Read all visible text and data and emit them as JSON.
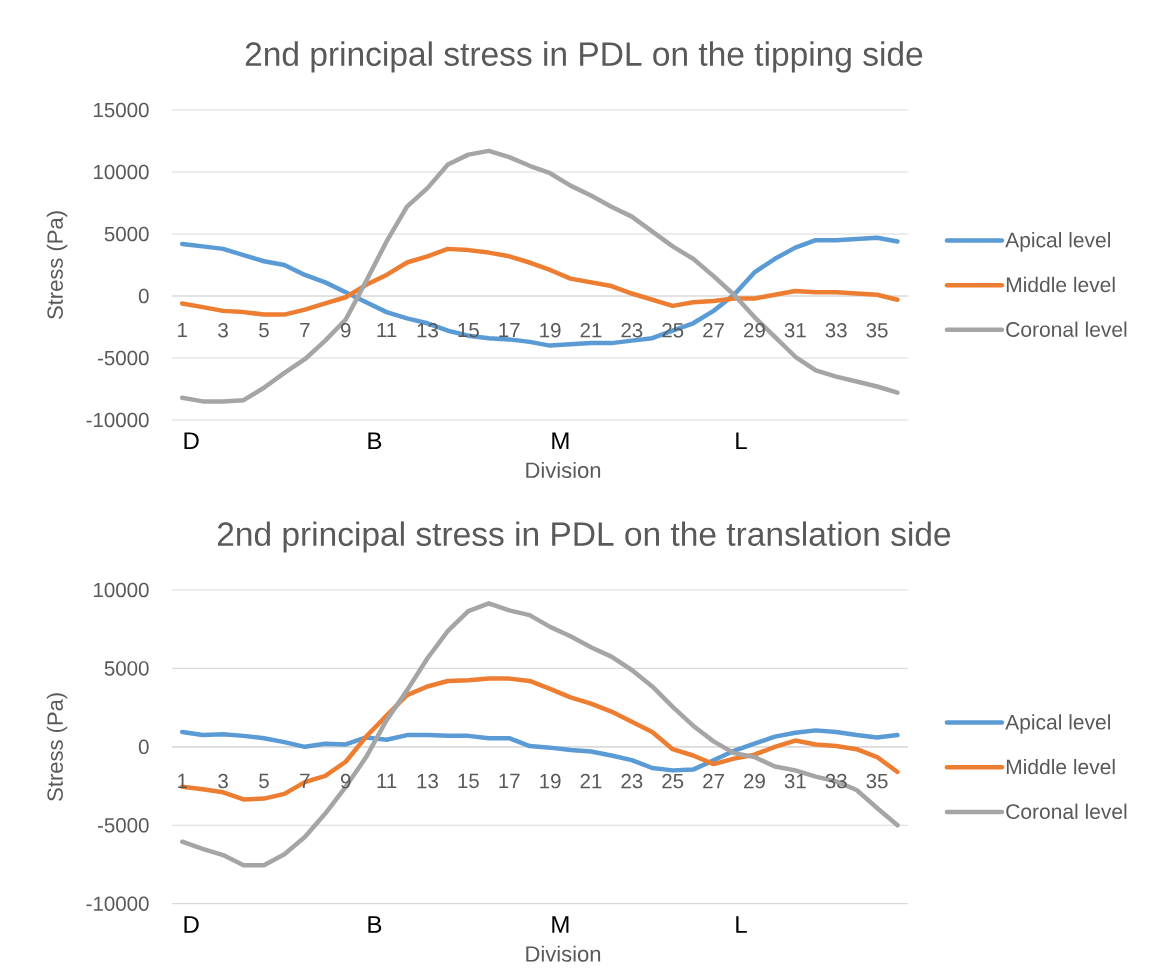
{
  "chart_data": [
    {
      "type": "line",
      "title": "2nd principal stress in PDL on the tipping side",
      "xlabel": "Division",
      "ylabel": "Stress (Pa)",
      "x": [
        1,
        2,
        3,
        4,
        5,
        6,
        7,
        8,
        9,
        10,
        11,
        12,
        13,
        14,
        15,
        16,
        17,
        18,
        19,
        20,
        21,
        22,
        23,
        24,
        25,
        26,
        27,
        28,
        29,
        30,
        31,
        32,
        33,
        34,
        35,
        36
      ],
      "xlim": [
        0.5,
        36.5
      ],
      "xticks": [
        1,
        3,
        5,
        7,
        9,
        11,
        13,
        15,
        17,
        19,
        21,
        23,
        25,
        27,
        29,
        31,
        33,
        35
      ],
      "ylim": [
        -10000,
        15000
      ],
      "yticks": [
        -10000,
        -5000,
        0,
        5000,
        10000,
        15000
      ],
      "grid": "y",
      "legend": "right",
      "series": [
        {
          "name": "Apical level",
          "color": "#5b9bd5",
          "values": [
            4200,
            4000,
            3800,
            3300,
            2800,
            2500,
            1700,
            1100,
            300,
            -500,
            -1300,
            -1800,
            -2200,
            -2800,
            -3200,
            -3400,
            -3500,
            -3700,
            -4000,
            -3900,
            -3800,
            -3800,
            -3600,
            -3400,
            -2800,
            -2200,
            -1200,
            100,
            1900,
            3000,
            3900,
            4500,
            4500,
            4600,
            4700,
            4400
          ]
        },
        {
          "name": "Middle level",
          "color": "#ed7d31",
          "values": [
            -600,
            -900,
            -1200,
            -1300,
            -1500,
            -1500,
            -1100,
            -600,
            -100,
            900,
            1700,
            2700,
            3200,
            3800,
            3700,
            3500,
            3200,
            2700,
            2100,
            1400,
            1100,
            800,
            200,
            -300,
            -800,
            -500,
            -400,
            -200,
            -200,
            100,
            400,
            300,
            300,
            200,
            100,
            -300
          ]
        },
        {
          "name": "Coronal level",
          "color": "#a5a5a5",
          "values": [
            -8200,
            -8500,
            -8500,
            -8400,
            -7400,
            -6200,
            -5100,
            -3600,
            -1900,
            1200,
            4400,
            7200,
            8700,
            10600,
            11400,
            11700,
            11200,
            10500,
            9900,
            8900,
            8100,
            7200,
            6400,
            5200,
            4000,
            3000,
            1600,
            100,
            -1700,
            -3300,
            -4900,
            -6000,
            -6500,
            -6900,
            -7300,
            -7800
          ]
        }
      ],
      "annotations": [
        "D",
        "B",
        "M",
        "L"
      ]
    },
    {
      "type": "line",
      "title": "2nd principal stress in PDL on the translation side",
      "xlabel": "Division",
      "ylabel": "Stress (Pa)",
      "x": [
        1,
        2,
        3,
        4,
        5,
        6,
        7,
        8,
        9,
        10,
        11,
        12,
        13,
        14,
        15,
        16,
        17,
        18,
        19,
        20,
        21,
        22,
        23,
        24,
        25,
        26,
        27,
        28,
        29,
        30,
        31,
        32,
        33,
        34,
        35,
        36
      ],
      "xlim": [
        0.5,
        36.5
      ],
      "xticks": [
        1,
        3,
        5,
        7,
        9,
        11,
        13,
        15,
        17,
        19,
        21,
        23,
        25,
        27,
        29,
        31,
        33,
        35
      ],
      "ylim": [
        -10000,
        10000
      ],
      "yticks": [
        -10000,
        -5000,
        0,
        5000,
        10000
      ],
      "grid": "y",
      "legend": "right",
      "series": [
        {
          "name": "Apical level",
          "color": "#5b9bd5",
          "values": [
            950,
            750,
            800,
            700,
            550,
            300,
            0,
            200,
            150,
            600,
            450,
            750,
            750,
            700,
            700,
            550,
            550,
            50,
            -50,
            -200,
            -300,
            -550,
            -850,
            -1350,
            -1500,
            -1450,
            -850,
            -250,
            200,
            650,
            900,
            1050,
            950,
            750,
            600,
            750
          ]
        },
        {
          "name": "Middle level",
          "color": "#ed7d31",
          "values": [
            -2550,
            -2700,
            -2900,
            -3350,
            -3300,
            -3000,
            -2250,
            -1850,
            -950,
            650,
            2000,
            3300,
            3850,
            4200,
            4250,
            4350,
            4350,
            4200,
            3700,
            3150,
            2750,
            2250,
            1600,
            950,
            -150,
            -550,
            -1100,
            -750,
            -500,
            0,
            400,
            150,
            50,
            -150,
            -650,
            -1600
          ]
        },
        {
          "name": "Coronal level",
          "color": "#a5a5a5",
          "values": [
            -6050,
            -6500,
            -6900,
            -7550,
            -7550,
            -6850,
            -5750,
            -4250,
            -2550,
            -650,
            1700,
            3600,
            5650,
            7400,
            8650,
            9150,
            8700,
            8400,
            7650,
            7050,
            6350,
            5750,
            4900,
            3850,
            2550,
            1350,
            350,
            -400,
            -650,
            -1250,
            -1500,
            -1900,
            -2200,
            -2750,
            -3900,
            -5000
          ]
        }
      ],
      "annotations": [
        "D",
        "B",
        "M",
        "L"
      ]
    }
  ]
}
